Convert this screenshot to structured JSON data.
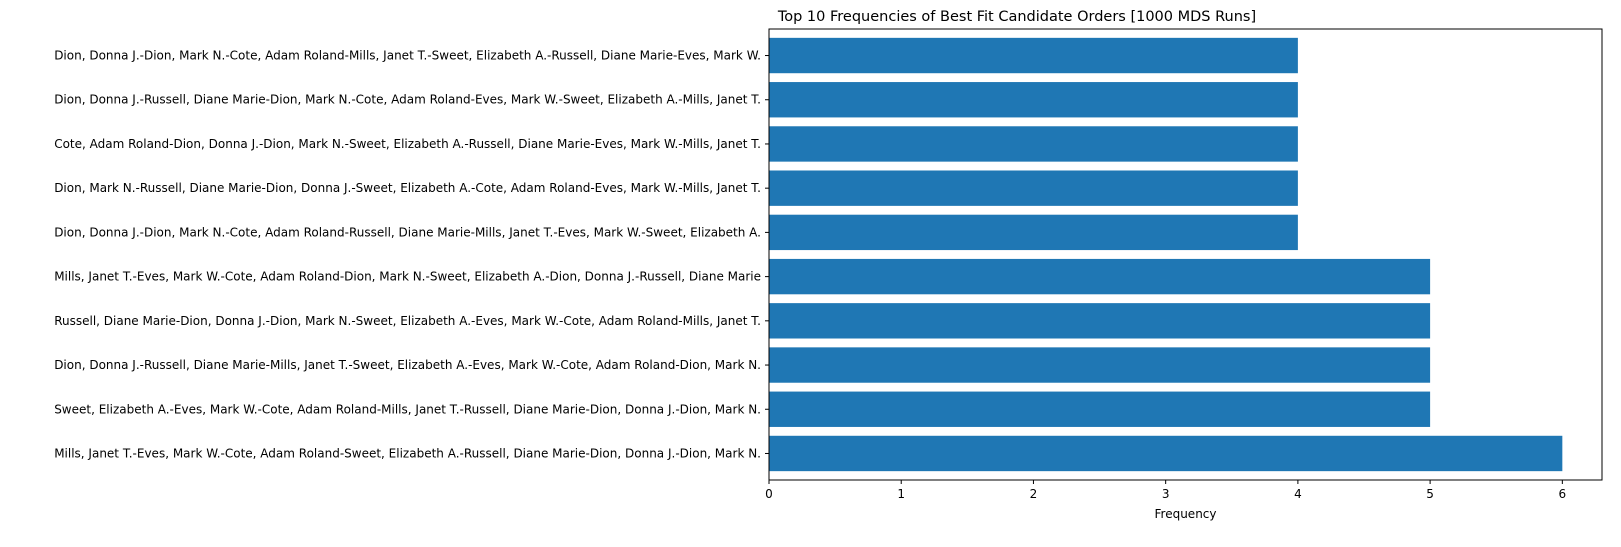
{
  "chart_data": {
    "type": "bar",
    "orientation": "horizontal",
    "title": "Top 10 Frequencies of Best Fit Candidate Orders [1000 MDS Runs]",
    "xlabel": "Frequency",
    "ylabel": "",
    "xlim": [
      0,
      6.3
    ],
    "xticks": [
      "0",
      "1",
      "2",
      "3",
      "4",
      "5",
      "6"
    ],
    "bar_color": "#1f77b4",
    "grid": false,
    "legend": "none",
    "categories": [
      "Dion, Donna J.-Dion, Mark N.-Cote, Adam Roland-Mills, Janet T.-Sweet, Elizabeth A.-Russell, Diane Marie-Eves, Mark W.",
      "Dion, Donna J.-Russell, Diane Marie-Dion, Mark N.-Cote, Adam Roland-Eves, Mark W.-Sweet, Elizabeth A.-Mills, Janet T.",
      "Cote, Adam Roland-Dion, Donna J.-Dion, Mark N.-Sweet, Elizabeth A.-Russell, Diane Marie-Eves, Mark W.-Mills, Janet T.",
      "Dion, Mark N.-Russell, Diane Marie-Dion, Donna J.-Sweet, Elizabeth A.-Cote, Adam Roland-Eves, Mark W.-Mills, Janet T.",
      "Dion, Donna J.-Dion, Mark N.-Cote, Adam Roland-Russell, Diane Marie-Mills, Janet T.-Eves, Mark W.-Sweet, Elizabeth A.",
      "Mills, Janet T.-Eves, Mark W.-Cote, Adam Roland-Dion, Mark N.-Sweet, Elizabeth A.-Dion, Donna J.-Russell, Diane Marie",
      "Russell, Diane Marie-Dion, Donna J.-Dion, Mark N.-Sweet, Elizabeth A.-Eves, Mark W.-Cote, Adam Roland-Mills, Janet T.",
      "Dion, Donna J.-Russell, Diane Marie-Mills, Janet T.-Sweet, Elizabeth A.-Eves, Mark W.-Cote, Adam Roland-Dion, Mark N.",
      "Sweet, Elizabeth A.-Eves, Mark W.-Cote, Adam Roland-Mills, Janet T.-Russell, Diane Marie-Dion, Donna J.-Dion, Mark N.",
      "Mills, Janet T.-Eves, Mark W.-Cote, Adam Roland-Sweet, Elizabeth A.-Russell, Diane Marie-Dion, Donna J.-Dion, Mark N."
    ],
    "values": [
      4,
      4,
      4,
      4,
      4,
      5,
      5,
      5,
      5,
      6
    ]
  }
}
